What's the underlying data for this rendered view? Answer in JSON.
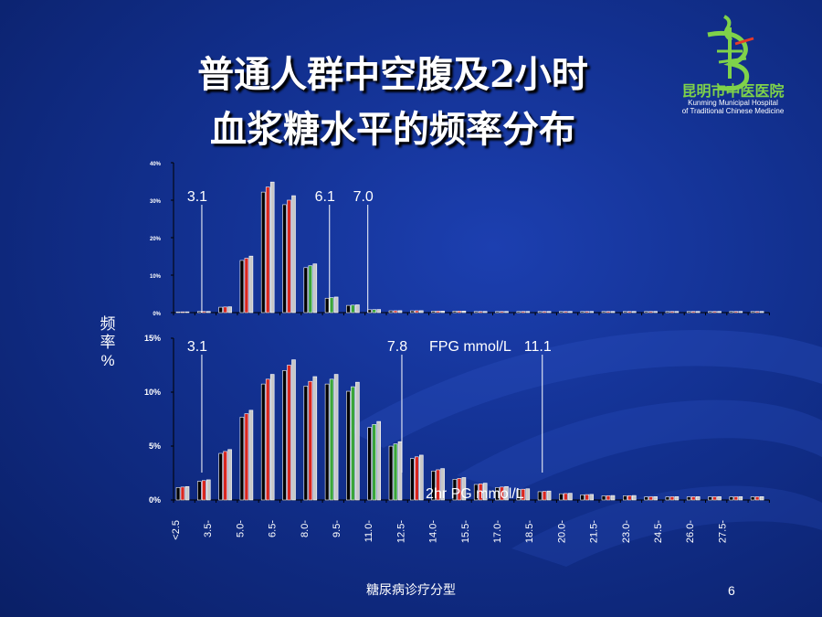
{
  "slide": {
    "title_line1": "普通人群中空腹及2小时",
    "title_line2": "血浆糖水平的频率分布",
    "footer": "糖尿病诊疗分型",
    "page_number": "6"
  },
  "logo": {
    "name_cn": "昆明市中医医院",
    "name_en_line1": "Kunming Municipal Hospital",
    "name_en_line2": "of Traditional Chinese Medicine"
  },
  "y_axis_label": "频 率 %",
  "colors": {
    "black": "#000000",
    "red": "#d8261f",
    "gray": "#c8c8c8",
    "green": "#3aa53a",
    "white": "#ffffff"
  },
  "chart_data": [
    {
      "type": "bar",
      "title": "",
      "x_label": "FPG mmol/L",
      "y_ticks": [
        "0%",
        "10%",
        "20%",
        "30%",
        "40%"
      ],
      "ylim": [
        0,
        40
      ],
      "cutoff_labels": [
        "3.1",
        "6.1",
        "7.0"
      ],
      "cutoffs": [
        3.1,
        6.1,
        7.0
      ],
      "x_start": 2.5,
      "x_step": 0.5,
      "series_colors_by_range": "black/red/gray before 5.5, green 5.5–7.0",
      "values": [
        0.2,
        0.3,
        1.5,
        14.5,
        33.5,
        30,
        12.5,
        4,
        2,
        0.8,
        0.5,
        0.5,
        0.4,
        0.4,
        0.3,
        0.3,
        0.3,
        0.3,
        0.3,
        0.3,
        0.3,
        0.3,
        0.3,
        0.3,
        0.3,
        0.3,
        0.3,
        0.3
      ]
    },
    {
      "type": "bar",
      "title": "",
      "x_label": "2hr PG mmol/L",
      "y_ticks": [
        "0%",
        "5%",
        "10%",
        "15%"
      ],
      "ylim": [
        0,
        15
      ],
      "cutoff_labels": [
        "3.1",
        "7.8",
        "11.1"
      ],
      "cutoffs": [
        3.1,
        7.8,
        11.1
      ],
      "x_start": 2.5,
      "x_step": 0.5,
      "values": [
        1.2,
        1.8,
        4.5,
        8,
        11.2,
        12.5,
        11,
        11.2,
        10.5,
        7,
        5.2,
        4,
        2.8,
        2,
        1.5,
        1.2,
        1.0,
        0.8,
        0.6,
        0.5,
        0.4,
        0.4,
        0.3,
        0.3,
        0.3,
        0.3,
        0.3,
        0.3
      ]
    }
  ],
  "x_tick_labels": [
    "<2.5",
    "3.5-",
    "5.0-",
    "6.5-",
    "8.0-",
    "9.5-",
    "11.0-",
    "12.5-",
    "14.0-",
    "15.5-",
    "17.0-",
    "18.5-",
    "20.0-",
    "21.5-",
    "23.0-",
    "24.5-",
    "26.0-",
    "27.5-"
  ]
}
